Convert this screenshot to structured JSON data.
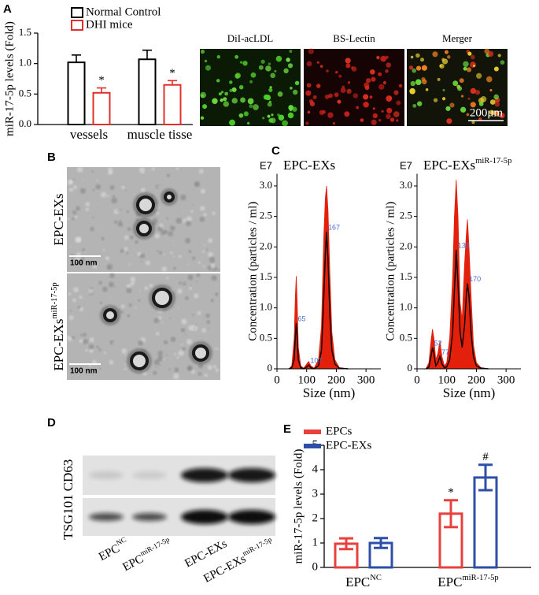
{
  "panel_labels": [
    "A",
    "B",
    "C",
    "D",
    "E"
  ],
  "chart_data": [
    {
      "type": "bar",
      "ylabel": "miR-17-5p levels (Fold)",
      "categories": [
        "vessels",
        "muscle tisse"
      ],
      "series": [
        {
          "name": "Normal Control",
          "color": "#000000",
          "values": [
            1.02,
            1.07
          ],
          "errors": [
            0.12,
            0.15
          ],
          "significance": [
            null,
            null
          ]
        },
        {
          "name": "DHI mice",
          "color": "#e0302a",
          "values": [
            0.52,
            0.65
          ],
          "errors": [
            0.08,
            0.07
          ],
          "significance": [
            "*",
            "*"
          ]
        }
      ],
      "ylim": [
        0,
        1.5
      ],
      "yticks": [
        {
          "value": 0,
          "label": "0.0"
        },
        0.5,
        {
          "value": 1,
          "label": "1.0"
        },
        1.5
      ]
    },
    {
      "type": "line",
      "corner_label": "E7",
      "title": "EPC-EXs",
      "ylabel": "Concentration (particles / ml)",
      "xlabel": "Size (nm)",
      "x": [
        40,
        50,
        58,
        62,
        65,
        68,
        72,
        80,
        90,
        100,
        107,
        114,
        125,
        140,
        150,
        158,
        163,
        167,
        172,
        178,
        185,
        195,
        210,
        240
      ],
      "values": [
        0,
        0.02,
        0.15,
        0.55,
        0.75,
        0.5,
        0.15,
        0.02,
        0,
        0.03,
        0.06,
        0.02,
        0,
        0.05,
        0.3,
        1.2,
        1.9,
        2.25,
        1.8,
        0.9,
        0.3,
        0.08,
        0.01,
        0
      ],
      "max_values": [
        0,
        0.05,
        0.5,
        1.2,
        1.52,
        1.1,
        0.35,
        0.05,
        0.01,
        0.08,
        0.12,
        0.05,
        0.01,
        0.15,
        0.7,
        2.2,
        2.8,
        3.0,
        2.6,
        1.6,
        0.6,
        0.15,
        0.02,
        0
      ],
      "line_color": "#000000",
      "area_color": "#e3200b",
      "peak_labels": [
        65,
        107,
        167
      ],
      "peak_label_color": "#4a6fd0",
      "xlim": [
        0,
        350
      ],
      "xticks": [
        0,
        100,
        200,
        300
      ],
      "ylim": [
        0,
        3.2
      ],
      "yticks": [
        0,
        0.5,
        {
          "value": 1,
          "label": "1.0"
        },
        1.5,
        {
          "value": 2,
          "label": "2.0"
        },
        2.5,
        {
          "value": 3,
          "label": "3.0"
        }
      ]
    },
    {
      "type": "line",
      "corner_label": "E7",
      "title": "EPC-EXs",
      "title_sup": "miR-17-5p",
      "ylabel": "Concentration (particles / ml)",
      "xlabel": "Size (nm)",
      "x": [
        30,
        40,
        47,
        52,
        57,
        63,
        70,
        77,
        84,
        92,
        100,
        110,
        120,
        126,
        132,
        138,
        145,
        152,
        160,
        166,
        170,
        175,
        182,
        190,
        200,
        215,
        240
      ],
      "values": [
        0,
        0.03,
        0.2,
        0.35,
        0.25,
        0.05,
        0.1,
        0.2,
        0.08,
        0.02,
        0.03,
        0.15,
        0.6,
        1.3,
        1.95,
        1.4,
        0.6,
        0.35,
        0.7,
        1.2,
        1.4,
        1.2,
        0.6,
        0.2,
        0.05,
        0.01,
        0
      ],
      "max_values": [
        0,
        0.1,
        0.45,
        0.65,
        0.5,
        0.15,
        0.25,
        0.45,
        0.2,
        0.05,
        0.1,
        0.5,
        1.5,
        2.5,
        3.1,
        2.5,
        1.1,
        0.8,
        1.7,
        2.2,
        2.45,
        2.0,
        1.2,
        0.4,
        0.1,
        0.02,
        0
      ],
      "line_color": "#000000",
      "area_color": "#e3200b",
      "peak_labels": [
        52,
        77,
        132,
        170
      ],
      "peak_label_color": "#4a6fd0",
      "xlim": [
        0,
        350
      ],
      "xticks": [
        0,
        100,
        200,
        300
      ],
      "ylim": [
        0,
        3.2
      ],
      "yticks": [
        0,
        0.5,
        {
          "value": 1,
          "label": "1.0"
        },
        1.5,
        {
          "value": 2,
          "label": "2.0"
        },
        2.5,
        {
          "value": 3,
          "label": "3.0"
        }
      ]
    },
    {
      "type": "bar",
      "ylabel": "miR-17-5p levels (Fold)",
      "categories": [
        "EPC",
        "EPC"
      ],
      "category_sups": [
        "NC",
        "miR-17-5p"
      ],
      "series": [
        {
          "name": "EPCs",
          "color": "#e8403c",
          "values": [
            0.97,
            2.2
          ],
          "errors": [
            0.22,
            0.55
          ],
          "significance": [
            null,
            "*"
          ]
        },
        {
          "name": "EPC-EXs",
          "color": "#2e4fa8",
          "values": [
            1.0,
            3.68
          ],
          "errors": [
            0.2,
            0.52
          ],
          "significance": [
            null,
            "#"
          ]
        }
      ],
      "ylim": [
        0,
        5
      ],
      "yticks": [
        0,
        1,
        2,
        3,
        4,
        5
      ]
    }
  ],
  "micrographs": {
    "titles": [
      "DiI-acLDL",
      "BS-Lectin",
      "Merger"
    ],
    "scale_bar": "200μm"
  },
  "electron_micrographs": {
    "labels": [
      {
        "text": "EPC-EXs"
      },
      {
        "text": "EPC-EXs",
        "sup": "miR-17-5p"
      }
    ],
    "scale_bars": [
      "100 nm",
      "100 nm"
    ]
  },
  "western_blot": {
    "proteins": [
      "CD63",
      "TSG101"
    ],
    "lanes": [
      {
        "text": "EPC",
        "sup": "NC"
      },
      {
        "text": "EPC",
        "sup": "miR-17-5p"
      },
      {
        "text": "EPC-EXs"
      },
      {
        "text": "EPC-EXs",
        "sup": "miR-17-5p"
      }
    ]
  }
}
